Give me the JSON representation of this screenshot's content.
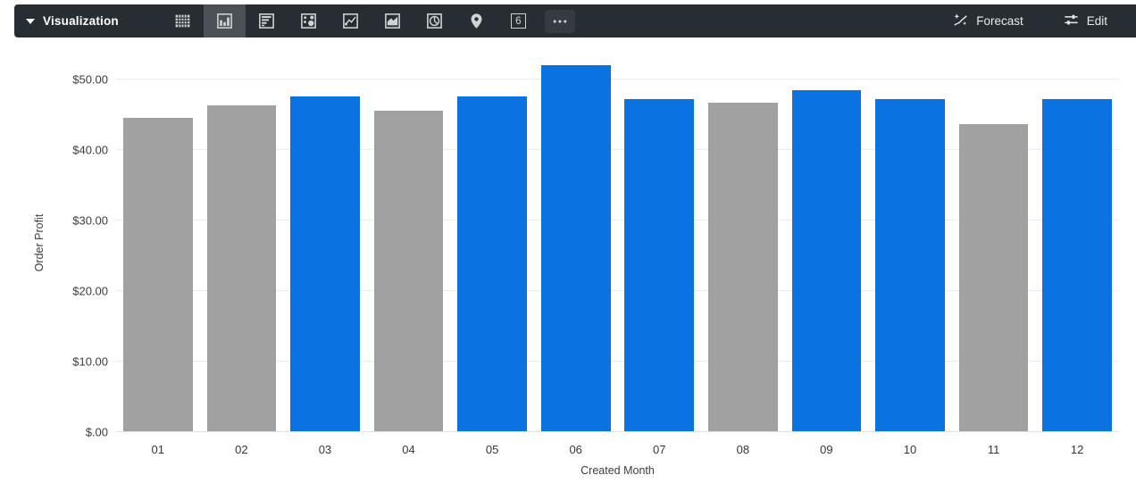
{
  "toolbar": {
    "title": "Visualization",
    "single_value_label": "6",
    "forecast_label": "Forecast",
    "edit_label": "Edit"
  },
  "chart_data": {
    "type": "bar",
    "title": "",
    "xlabel": "Created Month",
    "ylabel": "Order Profit",
    "categories": [
      "01",
      "02",
      "03",
      "04",
      "05",
      "06",
      "07",
      "08",
      "09",
      "10",
      "11",
      "12"
    ],
    "values": [
      44.6,
      46.4,
      47.6,
      45.6,
      47.6,
      52.0,
      47.3,
      46.7,
      48.5,
      47.3,
      43.7,
      47.3
    ],
    "bar_colors": [
      "#a1a1a1",
      "#a1a1a1",
      "#0b72e2",
      "#a1a1a1",
      "#0b72e2",
      "#0b72e2",
      "#0b72e2",
      "#a1a1a1",
      "#0b72e2",
      "#0b72e2",
      "#a1a1a1",
      "#0b72e2"
    ],
    "colors": {
      "bar_default": "#a1a1a1",
      "bar_highlight": "#0b72e2"
    },
    "ylim": [
      0,
      53.7
    ],
    "y_ticks": [
      {
        "value": 0,
        "label": "$.00"
      },
      {
        "value": 10,
        "label": "$10.00"
      },
      {
        "value": 20,
        "label": "$20.00"
      },
      {
        "value": 30,
        "label": "$30.00"
      },
      {
        "value": 40,
        "label": "$40.00"
      },
      {
        "value": 50,
        "label": "$50.00"
      }
    ],
    "grid": true,
    "legend": "none"
  }
}
